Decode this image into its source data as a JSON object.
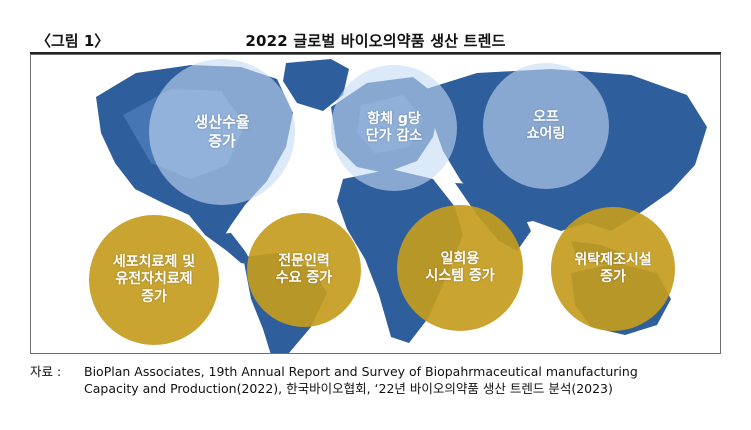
{
  "figure": {
    "label": "〈그림 1〉",
    "title": "2022 글로벌 바이오의약품 생산 트렌드"
  },
  "colors": {
    "land": "#2e5e9c",
    "land_light": "#5b8bc6",
    "blue_circle": "#c4dbf5",
    "gold_circle": "#c49c20"
  },
  "trends": [
    {
      "text": "생산수율\n증가",
      "tone": "blue"
    },
    {
      "text": "항체 g당\n단가 감소",
      "tone": "blue"
    },
    {
      "text": "오프\n쇼어링",
      "tone": "blue"
    },
    {
      "text": "세포치료제 및\n유전자치료제\n증가",
      "tone": "gold"
    },
    {
      "text": "전문인력\n수요 증가",
      "tone": "gold"
    },
    {
      "text": "일회용\n시스템 증가",
      "tone": "gold"
    },
    {
      "text": "위탁제조시설\n증가",
      "tone": "gold"
    }
  ],
  "source": {
    "label": "자료 :",
    "line1": "BioPlan Associates, 19th Annual Report and Survey of Biopahrmaceutical manufacturing",
    "line2": "Capacity and Production(2022), 한국바이오협회, ‘22년 바이오의약품 생산 트렌드 분석(2023)"
  }
}
